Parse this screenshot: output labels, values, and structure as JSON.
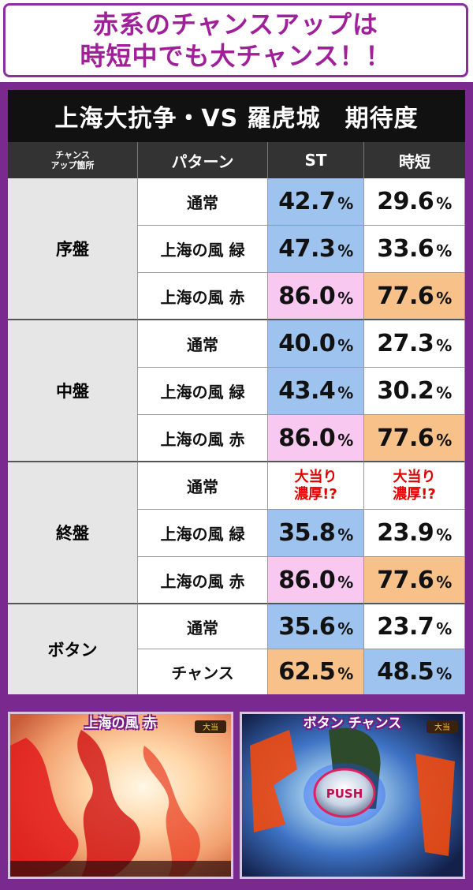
{
  "header": {
    "line1": "赤系のチャンスアップは",
    "line2": "時短中でも大チャンス！！"
  },
  "table": {
    "title": "上海大抗争・VS 羅虎城　期待度",
    "col_headers": {
      "place_line1": "チャンス",
      "place_line2": "アップ箇所",
      "pattern": "パターン",
      "st": "ST",
      "jitan": "時短"
    },
    "percent_sign": "%",
    "groups": [
      {
        "name": "序盤",
        "rows": [
          {
            "pattern": "通常",
            "st": "42.7",
            "jitan": "29.6"
          },
          {
            "pattern": "上海の風 緑",
            "st": "47.3",
            "jitan": "33.6"
          },
          {
            "pattern": "上海の風 赤",
            "st": "86.0",
            "jitan": "77.6"
          }
        ]
      },
      {
        "name": "中盤",
        "rows": [
          {
            "pattern": "通常",
            "st": "40.0",
            "jitan": "27.3"
          },
          {
            "pattern": "上海の風 緑",
            "st": "43.4",
            "jitan": "30.2"
          },
          {
            "pattern": "上海の風 赤",
            "st": "86.0",
            "jitan": "77.6"
          }
        ]
      },
      {
        "name": "終盤",
        "rows": [
          {
            "pattern": "通常",
            "st_line1": "大当り",
            "st_line2": "濃厚!?",
            "jitan_line1": "大当り",
            "jitan_line2": "濃厚!?"
          },
          {
            "pattern": "上海の風 緑",
            "st": "35.8",
            "jitan": "23.9"
          },
          {
            "pattern": "上海の風 赤",
            "st": "86.0",
            "jitan": "77.6"
          }
        ]
      },
      {
        "name": "ボタン",
        "rows": [
          {
            "pattern": "通常",
            "st": "35.6",
            "jitan": "23.7"
          },
          {
            "pattern": "チャンス",
            "st": "62.5",
            "jitan": "48.5"
          }
        ]
      }
    ]
  },
  "screenshots": {
    "left_label": "上海の風 赤",
    "right_label": "ボタン チャンス",
    "push_label": "PUSH"
  },
  "colors": {
    "accent_purple": "#8b2f9e",
    "st_blue": "#9dc3ee",
    "st_pink": "#f8c8f0",
    "orange": "#f7c189",
    "special_red": "#e00000"
  }
}
